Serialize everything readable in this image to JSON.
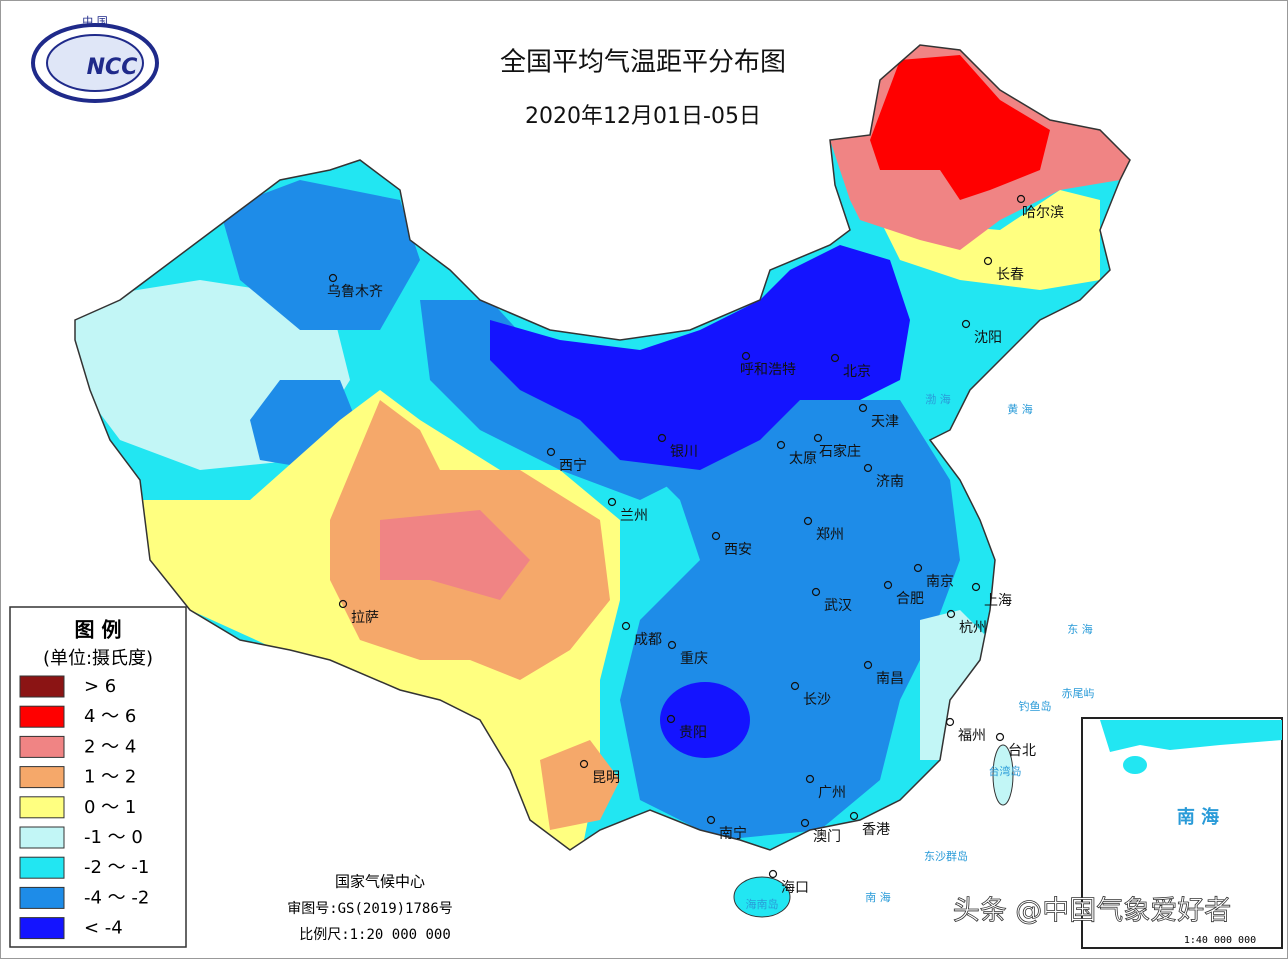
{
  "header": {
    "logo_top": "中 国",
    "logo_abbr": "NCC",
    "title": "全国平均气温距平分布图",
    "date": "2020年12月01日-05日"
  },
  "legend": {
    "title": "图 例",
    "unit": "(单位:摄氏度)",
    "items": [
      {
        "label": "> 6",
        "color": "#8b1414"
      },
      {
        "label": "4 ～ 6",
        "color": "#ff0000"
      },
      {
        "label": "2 ～ 4",
        "color": "#f08484"
      },
      {
        "label": "1 ～ 2",
        "color": "#f5a86a"
      },
      {
        "label": "0 ～ 1",
        "color": "#ffff80"
      },
      {
        "label": "-1 ～ 0",
        "color": "#c2f6f6"
      },
      {
        "label": "-2 ～ -1",
        "color": "#22e6f2"
      },
      {
        "label": "-4 ～ -2",
        "color": "#1e8ce8"
      },
      {
        "label": "< -4",
        "color": "#1414ff"
      }
    ]
  },
  "cities": [
    "乌鲁木齐",
    "呼和浩特",
    "北京",
    "天津",
    "银川",
    "太原",
    "石家庄",
    "济南",
    "西宁",
    "兰州",
    "西安",
    "郑州",
    "南京",
    "合肥",
    "上海",
    "武汉",
    "杭州",
    "拉萨",
    "成都",
    "重庆",
    "南昌",
    "长沙",
    "贵阳",
    "福州",
    "台北",
    "昆明",
    "广州",
    "南宁",
    "澳门",
    "香港",
    "海口",
    "哈尔滨",
    "长春",
    "沈阳"
  ],
  "places": [
    "渤 海",
    "黄 海",
    "东 海",
    "南 海",
    "钓鱼岛",
    "赤尾屿",
    "台湾岛",
    "东沙群岛",
    "海南岛"
  ],
  "footer": {
    "org": "国家气候中心",
    "review": "审图号:GS(2019)1786号",
    "scale": "比例尺:1:20 000 000"
  },
  "inset": {
    "label": "南 海",
    "scale": "1:40 000 000"
  },
  "watermark": "头条 @中国气象爱好者"
}
